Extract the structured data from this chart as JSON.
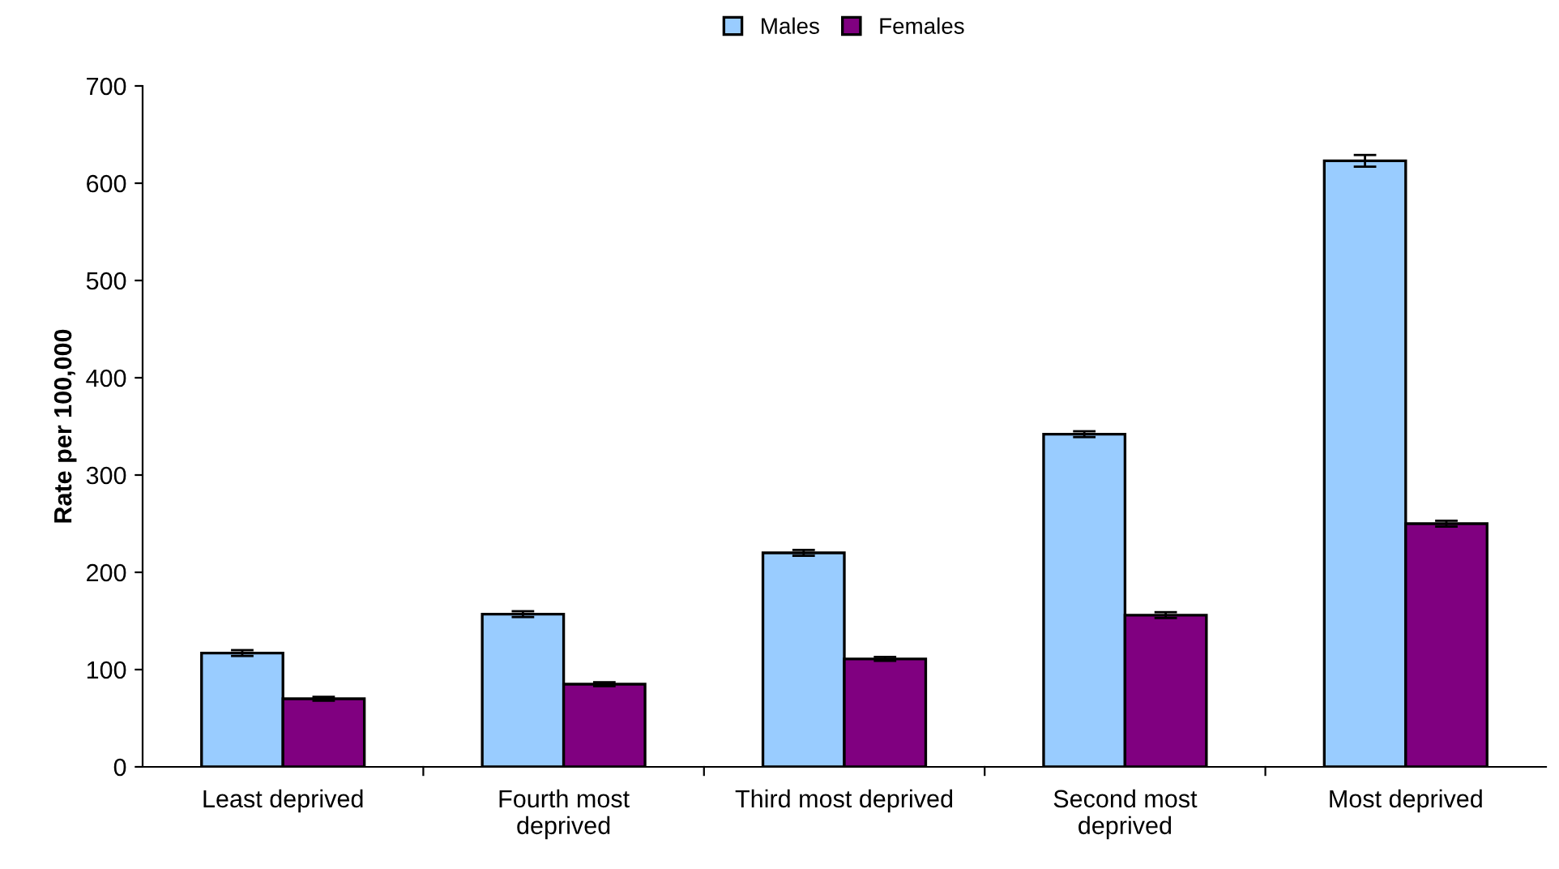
{
  "chart_data": {
    "type": "bar",
    "ylabel": "Rate per 100,000",
    "categories": [
      "Least deprived",
      "Fourth most\ndeprived",
      "Third most deprived",
      "Second most\ndeprived",
      "Most deprived"
    ],
    "series": [
      {
        "name": "Males",
        "color": "#99ccff",
        "values": [
          117,
          157,
          220,
          342,
          623
        ],
        "errors": [
          3,
          3,
          3,
          3,
          6
        ]
      },
      {
        "name": "Females",
        "color": "#800080",
        "values": [
          70,
          85,
          111,
          156,
          250
        ],
        "errors": [
          2,
          2,
          2,
          3,
          3
        ]
      }
    ],
    "ylim": [
      0,
      700
    ],
    "yticks": [
      0,
      100,
      200,
      300,
      400,
      500,
      600,
      700
    ],
    "grid": false,
    "legend": "top"
  }
}
